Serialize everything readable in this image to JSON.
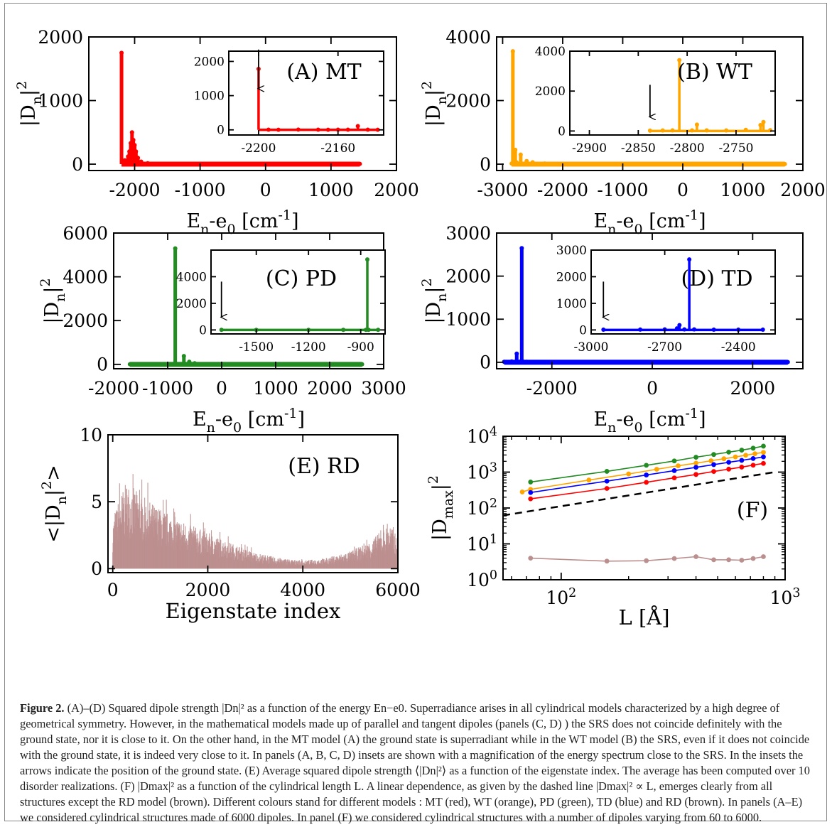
{
  "figure": {
    "caption_label": "Figure 2.",
    "caption_text": "(A)–(D) Squared dipole strength |Dn|² as a function of the energy En−e0. Superradiance arises in all cylindrical models characterized by a high degree of geometrical symmetry. However, in the mathematical models made up of parallel and tangent dipoles (panels (C, D) ) the SRS does not coincide definitely with the ground state, nor it is close to it. On the other hand, in the MT model (A) the ground state is superradiant while in the WT model (B) the SRS, even if it does not coincide with the ground state, it is indeed very close to it. In panels (A, B, C, D) insets are shown with a magnification of the energy spectrum close to the SRS. In the insets the arrows indicate the position of the ground state. (E) Average squared dipole strength ⟨|Dn|²⟩ as a function of the eigenstate index. The average has been computed over 10 disorder realizations. (F) |Dmax|² as a function of the cylindrical length L. A linear dependence, as given by the dashed line |Dmax|² ∝ L, emerges clearly from all structures except the RD model (brown). Different colours stand for different models : MT (red), WT (orange), PD (green), TD (blue) and RD (brown). In panels (A–E) we considered cylindrical structures made of 6000 dipoles. In panel (F) we considered cylindrical structures with a number of dipoles varying from 60 to 6000."
  },
  "chart_data": [
    {
      "panel": "A",
      "type": "line",
      "label": "(A) MT",
      "color": "#ff0000",
      "xlabel": "En-e0 [cm-1]",
      "ylabel": "|Dn|2",
      "xlim": [
        -2700,
        2000
      ],
      "ylim": [
        -100,
        2000
      ],
      "xticks": [
        "-2000",
        "-1000",
        "0",
        "1000",
        "2000"
      ],
      "xtick_values": [
        -2000,
        -1000,
        0,
        1000,
        2000
      ],
      "yticks": [
        "0",
        "1000",
        "2000"
      ],
      "ytick_values": [
        0,
        1000,
        2000
      ],
      "x": [
        -2200,
        -2150,
        -2100,
        -2080,
        -2060,
        -2040,
        -2020,
        -2000,
        -1980,
        -1950,
        -1900,
        -1800,
        -1500,
        -1000,
        0,
        1000,
        1440
      ],
      "y": [
        1750,
        60,
        120,
        200,
        330,
        500,
        380,
        300,
        200,
        100,
        40,
        15,
        5,
        5,
        5,
        5,
        5
      ],
      "inset": {
        "xlim": [
          -2215,
          -2137
        ],
        "ylim": [
          -150,
          2300
        ],
        "xticks": [
          "-2200",
          "-2160"
        ],
        "xtick_values": [
          -2200,
          -2160
        ],
        "yticks": [
          "0",
          "1000",
          "2000"
        ],
        "ytick_values": [
          0,
          1000,
          2000
        ],
        "x": [
          -2200,
          -2195,
          -2190,
          -2180,
          -2170,
          -2165,
          -2160,
          -2155,
          -2150,
          -2145,
          -2140
        ],
        "y": [
          1780,
          5,
          3,
          8,
          5,
          4,
          6,
          5,
          110,
          5,
          4
        ],
        "ground_state_x": -2200
      }
    },
    {
      "panel": "B",
      "type": "line",
      "label": "(B) WT",
      "color": "#ffa500",
      "xlabel": "En-e0 [cm-1]",
      "ylabel": "|Dn|2",
      "xlim": [
        -3100,
        2000
      ],
      "ylim": [
        -200,
        4000
      ],
      "xticks": [
        "-3000",
        "-2000",
        "-1000",
        "0",
        "1000",
        "2000"
      ],
      "xtick_values": [
        -3000,
        -2000,
        -1000,
        0,
        1000,
        2000
      ],
      "yticks": [
        "0",
        "2000",
        "4000"
      ],
      "ytick_values": [
        0,
        2000,
        4000
      ],
      "x": [
        -2850,
        -2830,
        -2810,
        -2790,
        -2770,
        -2700,
        -2600,
        -2500,
        -2300,
        -2000,
        -1000,
        0,
        1000,
        1700
      ],
      "y": [
        20,
        3550,
        100,
        450,
        60,
        300,
        100,
        60,
        20,
        10,
        5,
        5,
        5,
        5
      ],
      "inset": {
        "xlim": [
          -2920,
          -2710
        ],
        "ylim": [
          -200,
          4000
        ],
        "xticks": [
          "-2900",
          "-2850",
          "-2800",
          "-2750"
        ],
        "xtick_values": [
          -2900,
          -2850,
          -2800,
          -2750
        ],
        "yticks": [
          "0",
          "2000",
          "4000"
        ],
        "ytick_values": [
          0,
          2000,
          4000
        ],
        "x": [
          -2838,
          -2825,
          -2815,
          -2808,
          -2795,
          -2790,
          -2780,
          -2760,
          -2740,
          -2725,
          -2722,
          -2715
        ],
        "y": [
          20,
          25,
          30,
          3550,
          30,
          320,
          30,
          25,
          60,
          300,
          450,
          40
        ],
        "ground_state_x": -2838
      }
    },
    {
      "panel": "C",
      "type": "line",
      "label": "(C) PD",
      "color": "#228b22",
      "xlabel": "En-e0 [cm-1]",
      "ylabel": "|Dn|2",
      "xlim": [
        -2000,
        3000
      ],
      "ylim": [
        -200,
        6000
      ],
      "xticks": [
        "-2000",
        "-1000",
        "0",
        "1000",
        "2000",
        "3000"
      ],
      "xtick_values": [
        -2000,
        -1000,
        0,
        1000,
        2000,
        3000
      ],
      "yticks": [
        "0",
        "2000",
        "4000",
        "6000"
      ],
      "ytick_values": [
        0,
        2000,
        4000,
        6000
      ],
      "x": [
        -1700,
        -1500,
        -1000,
        -860,
        -800,
        -700,
        -600,
        -500,
        0,
        1000,
        2000,
        2600
      ],
      "y": [
        5,
        5,
        5,
        5300,
        5,
        380,
        120,
        50,
        5,
        5,
        5,
        5
      ],
      "inset": {
        "xlim": [
          -1760,
          -760
        ],
        "ylim": [
          -300,
          6000
        ],
        "xticks": [
          "-1500",
          "-1200",
          "-900"
        ],
        "xtick_values": [
          -1500,
          -1200,
          -900
        ],
        "yticks": [
          "0",
          "2000",
          "4000"
        ],
        "ytick_values": [
          0,
          2000,
          4000
        ],
        "x": [
          -1700,
          -1500,
          -1200,
          -1000,
          -870,
          -862,
          -855,
          -800
        ],
        "y": [
          5,
          5,
          5,
          5,
          5,
          5300,
          5,
          5
        ],
        "ground_state_x": -1700
      }
    },
    {
      "panel": "D",
      "type": "line",
      "label": "(D) TD",
      "color": "#0000ff",
      "xlabel": "En-e0 [cm-1]",
      "ylabel": "|Dn|2",
      "xlim": [
        -3100,
        3000
      ],
      "ylim": [
        -150,
        3000
      ],
      "xticks": [
        "-2000",
        "0",
        "2000"
      ],
      "xtick_values": [
        -2000,
        0,
        2000
      ],
      "yticks": [
        "0",
        "1000",
        "2000",
        "3000"
      ],
      "ytick_values": [
        0,
        1000,
        2000,
        3000
      ],
      "x": [
        -2950,
        -2800,
        -2700,
        -2620,
        -2600,
        -2580,
        -2500,
        -2000,
        0,
        2000,
        2700
      ],
      "y": [
        10,
        20,
        200,
        20,
        2650,
        20,
        10,
        5,
        5,
        5,
        5
      ],
      "inset": {
        "xlim": [
          -3000,
          -2250
        ],
        "ylim": [
          -150,
          3000
        ],
        "xticks": [
          "-3000",
          "-2700",
          "-2400"
        ],
        "xtick_values": [
          -3000,
          -2700,
          -2400
        ],
        "yticks": [
          "0",
          "1000",
          "2000",
          "3000"
        ],
        "ytick_values": [
          0,
          1000,
          2000,
          3000
        ],
        "x": [
          -2950,
          -2800,
          -2700,
          -2650,
          -2640,
          -2620,
          -2600,
          -2580,
          -2500,
          -2400,
          -2300
        ],
        "y": [
          10,
          15,
          20,
          60,
          180,
          20,
          2650,
          20,
          10,
          10,
          10
        ],
        "ground_state_x": -2950
      }
    },
    {
      "panel": "E",
      "type": "bar",
      "label": "(E) RD",
      "color": "#bc8f8f",
      "xlabel": "Eigenstate index",
      "ylabel": "<|Dn|2>",
      "xlim": [
        -100,
        6000
      ],
      "ylim": [
        -0.3,
        10
      ],
      "xticks": [
        "0",
        "2000",
        "4000",
        "6000"
      ],
      "xtick_values": [
        0,
        2000,
        4000,
        6000
      ],
      "yticks": [
        "0",
        "5",
        "10"
      ],
      "ytick_values": [
        0,
        5,
        10
      ],
      "envelope_x": [
        0,
        150,
        300,
        600,
        1000,
        1500,
        2000,
        2500,
        3000,
        3500,
        4000,
        4500,
        5000,
        5400,
        5700,
        5850,
        6000
      ],
      "envelope_y": [
        3.5,
        5.5,
        6.5,
        5.5,
        4.5,
        3.5,
        2.7,
        1.9,
        1.2,
        0.8,
        0.6,
        0.8,
        1.3,
        2.0,
        3.0,
        3.3,
        2.0
      ]
    },
    {
      "panel": "F",
      "type": "line",
      "label": "(F)",
      "xlabel": "L [Å]",
      "ylabel": "|Dmax|2",
      "xscale": "log",
      "yscale": "log",
      "xlim": [
        55,
        1000
      ],
      "ylim": [
        1,
        10000
      ],
      "xticks": [
        "10^2",
        "10^3"
      ],
      "xtick_values": [
        100,
        1000
      ],
      "yticks": [
        "10^0",
        "10^1",
        "10^2",
        "10^3",
        "10^4"
      ],
      "ytick_values": [
        1,
        10,
        100,
        1000,
        10000
      ],
      "series": [
        {
          "model": "PD",
          "color": "#228b22",
          "x": [
            73,
            160,
            240,
            320,
            400,
            480,
            560,
            640,
            720,
            800
          ],
          "y": [
            530,
            1050,
            1550,
            2050,
            2600,
            3100,
            3600,
            4100,
            4650,
            5300
          ]
        },
        {
          "model": "WT",
          "color": "#ffa500",
          "x": [
            67,
            73,
            133,
            200,
            267,
            333,
            400,
            467,
            533,
            600,
            667,
            733,
            800
          ],
          "y": [
            280,
            330,
            600,
            890,
            1200,
            1500,
            1780,
            2070,
            2360,
            2650,
            2950,
            3250,
            3550
          ]
        },
        {
          "model": "TD",
          "color": "#0000ff",
          "x": [
            73,
            160,
            240,
            320,
            400,
            480,
            560,
            640,
            720,
            800
          ],
          "y": [
            270,
            560,
            830,
            1100,
            1360,
            1620,
            1880,
            2130,
            2390,
            2650
          ]
        },
        {
          "model": "MT",
          "color": "#ff0000",
          "x": [
            73,
            160,
            240,
            320,
            400,
            480,
            560,
            640,
            720,
            800
          ],
          "y": [
            180,
            350,
            520,
            690,
            860,
            1040,
            1210,
            1380,
            1560,
            1750
          ]
        },
        {
          "model": "RD",
          "color": "#bc8f8f",
          "x": [
            73,
            160,
            240,
            320,
            400,
            480,
            560,
            640,
            720,
            800
          ],
          "y": [
            4.0,
            3.3,
            3.4,
            3.9,
            4.4,
            3.6,
            3.6,
            3.5,
            3.9,
            4.4
          ]
        }
      ],
      "reference_line": {
        "style": "dashed",
        "color": "#000000",
        "x": [
          55,
          900
        ],
        "y": [
          62,
          1000
        ]
      }
    }
  ]
}
